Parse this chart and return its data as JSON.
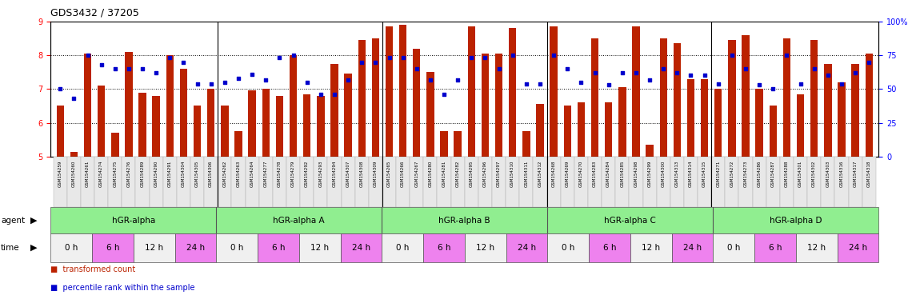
{
  "title": "GDS3432 / 37205",
  "bar_color": "#BB2200",
  "dot_color": "#0000CC",
  "ylim_left": [
    5,
    9
  ],
  "ylim_right": [
    0,
    100
  ],
  "yticks_left": [
    5,
    6,
    7,
    8,
    9
  ],
  "yticks_right": [
    0,
    25,
    50,
    75,
    100
  ],
  "sample_ids": [
    "GSM154259",
    "GSM154260",
    "GSM154261",
    "GSM154274",
    "GSM154275",
    "GSM154276",
    "GSM154289",
    "GSM154290",
    "GSM154291",
    "GSM154304",
    "GSM154305",
    "GSM154306",
    "GSM154262",
    "GSM154263",
    "GSM154264",
    "GSM154277",
    "GSM154278",
    "GSM154279",
    "GSM154292",
    "GSM154293",
    "GSM154294",
    "GSM154307",
    "GSM154308",
    "GSM154309",
    "GSM154265",
    "GSM154266",
    "GSM154267",
    "GSM154280",
    "GSM154281",
    "GSM154282",
    "GSM154295",
    "GSM154296",
    "GSM154297",
    "GSM154310",
    "GSM154311",
    "GSM154312",
    "GSM154268",
    "GSM154269",
    "GSM154270",
    "GSM154283",
    "GSM154284",
    "GSM154285",
    "GSM154298",
    "GSM154299",
    "GSM154300",
    "GSM154313",
    "GSM154314",
    "GSM154315",
    "GSM154271",
    "GSM154272",
    "GSM154273",
    "GSM154286",
    "GSM154287",
    "GSM154288",
    "GSM154301",
    "GSM154302",
    "GSM154303",
    "GSM154316",
    "GSM154317",
    "GSM154318"
  ],
  "bar_values": [
    6.5,
    5.15,
    8.05,
    7.1,
    5.7,
    8.1,
    6.9,
    6.8,
    8.0,
    7.6,
    6.5,
    7.0,
    6.5,
    5.75,
    6.95,
    7.0,
    6.8,
    8.0,
    6.85,
    6.8,
    7.75,
    7.45,
    8.45,
    8.5,
    8.85,
    8.9,
    8.2,
    7.5,
    5.75,
    5.75,
    8.85,
    8.05,
    8.05,
    8.8,
    5.75,
    6.55,
    8.85,
    6.5,
    6.6,
    8.5,
    6.6,
    7.05,
    8.85,
    5.35,
    8.5,
    8.35,
    7.3,
    7.3,
    7.0,
    8.45,
    8.6,
    7.0,
    6.5,
    8.5,
    6.85,
    8.45,
    7.75,
    7.2,
    7.75,
    8.05
  ],
  "dot_values_pct": [
    50,
    43,
    75,
    68,
    65,
    65,
    65,
    62,
    73,
    70,
    54,
    54,
    55,
    58,
    61,
    57,
    73,
    75,
    55,
    46,
    46,
    57,
    70,
    70,
    73,
    73,
    65,
    57,
    46,
    57,
    73,
    73,
    65,
    75,
    54,
    54,
    75,
    65,
    55,
    62,
    53,
    62,
    62,
    57,
    65,
    62,
    60,
    60,
    54,
    75,
    65,
    53,
    50,
    75,
    54,
    65,
    60,
    54,
    62,
    70
  ],
  "agents": [
    {
      "label": "hGR-alpha",
      "start": 0,
      "end": 12
    },
    {
      "label": "hGR-alpha A",
      "start": 12,
      "end": 24
    },
    {
      "label": "hGR-alpha B",
      "start": 24,
      "end": 36
    },
    {
      "label": "hGR-alpha C",
      "start": 36,
      "end": 48
    },
    {
      "label": "hGR-alpha D",
      "start": 48,
      "end": 60
    }
  ],
  "agent_color": "#90EE90",
  "time_labels": [
    "0 h",
    "6 h",
    "12 h",
    "24 h"
  ],
  "time_color_even": "#F0F0F0",
  "time_color_odd": "#EE82EE",
  "legend_bar_label": "transformed count",
  "legend_dot_label": "percentile rank within the sample"
}
